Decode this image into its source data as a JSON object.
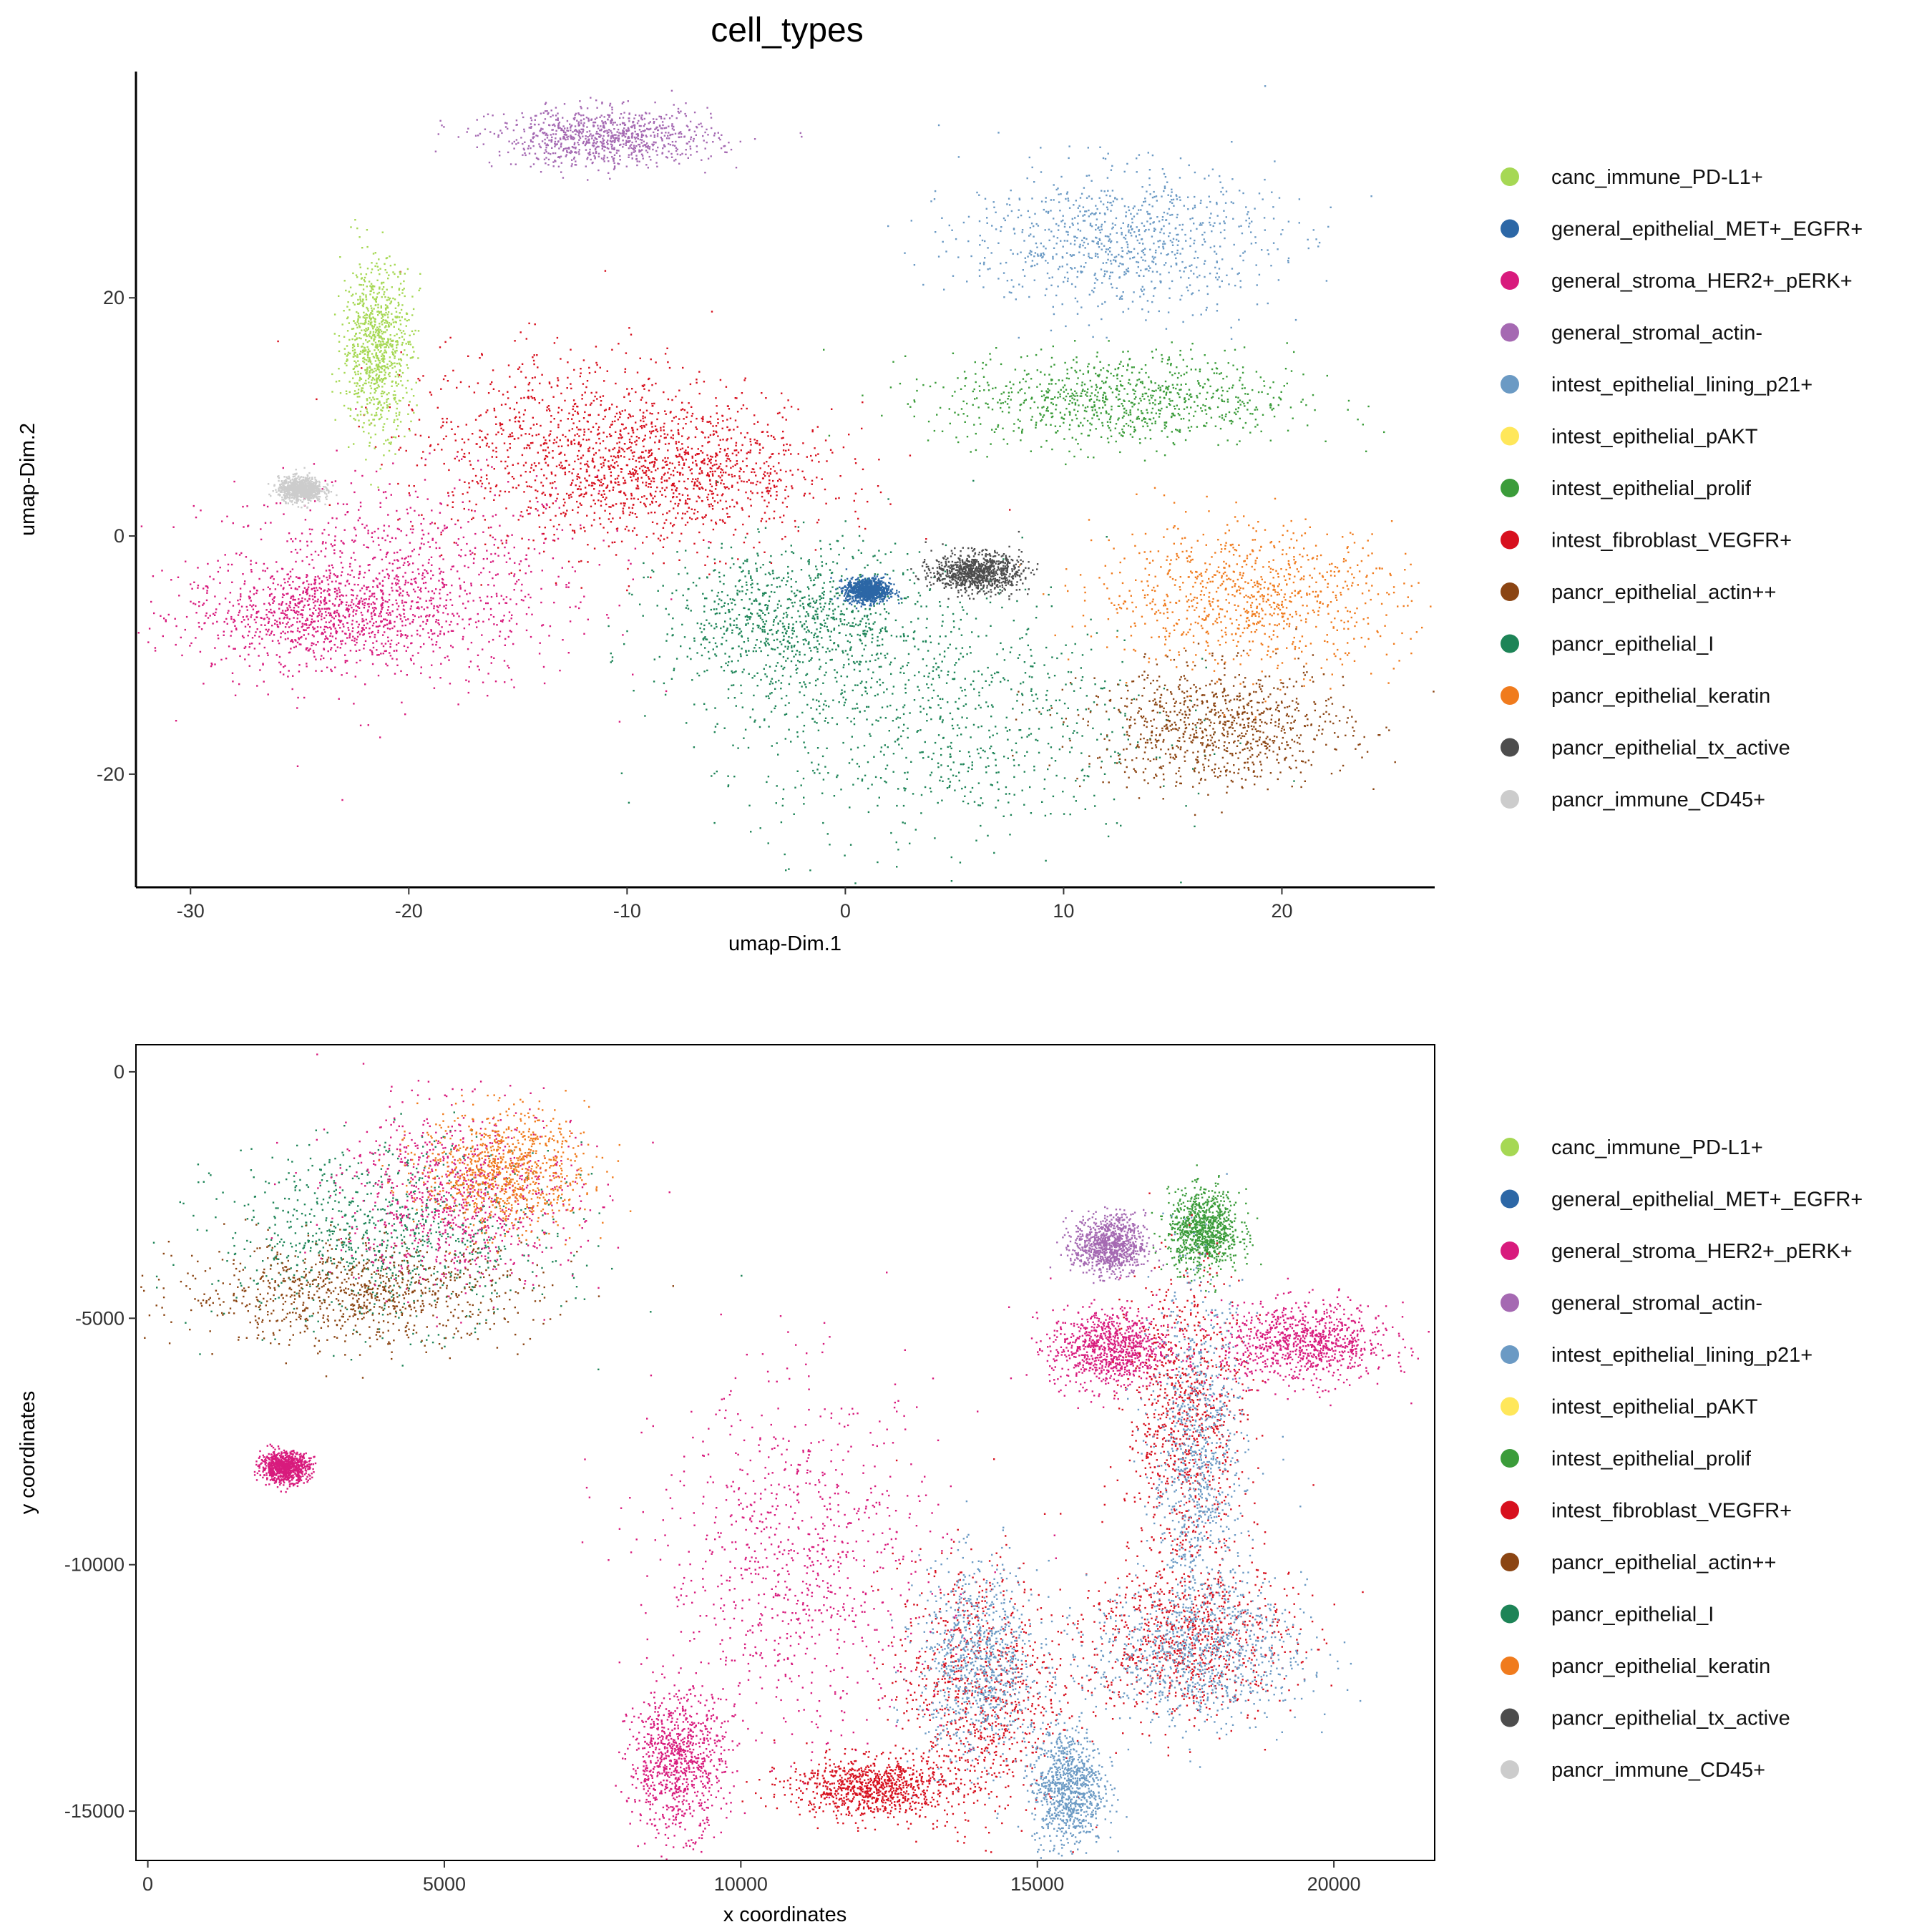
{
  "title": "cell_types",
  "legend_items": [
    {
      "label": "canc_immune_PD-L1+",
      "color": "#A6D854"
    },
    {
      "label": "general_epithelial_MET+_EGFR+",
      "color": "#2C67A6"
    },
    {
      "label": "general_stroma_HER2+_pERK+",
      "color": "#D81B7D"
    },
    {
      "label": "general_stromal_actin-",
      "color": "#A569B2"
    },
    {
      "label": "intest_epithelial_lining_p21+",
      "color": "#6B9AC4"
    },
    {
      "label": "intest_epithelial_pAKT",
      "color": "#FFE75A"
    },
    {
      "label": "intest_epithelial_prolif",
      "color": "#3B9C3A"
    },
    {
      "label": "intest_fibroblast_VEGFR+",
      "color": "#D7101E"
    },
    {
      "label": "pancr_epithelial_actin++",
      "color": "#8B4513"
    },
    {
      "label": "pancr_epithelial_I",
      "color": "#1D8457"
    },
    {
      "label": "pancr_epithelial_keratin",
      "color": "#F07B1D"
    },
    {
      "label": "pancr_epithelial_tx_active",
      "color": "#4D4D4D"
    },
    {
      "label": "pancr_immune_CD45+",
      "color": "#CCCCCC"
    }
  ],
  "chart_data": [
    {
      "type": "scatter",
      "title": "cell_types",
      "xlabel": "umap-Dim.1",
      "ylabel": "umap-Dim.2",
      "xlim": [
        -32.5,
        27
      ],
      "ylim": [
        -29.5,
        39
      ],
      "xticks": [
        -30,
        -20,
        -10,
        0,
        10,
        20
      ],
      "yticks": [
        -20,
        0,
        20
      ],
      "grid": false,
      "legend": "right",
      "clusters": [
        {
          "series": "general_stroma_HER2+_pERK+",
          "cx": -20.5,
          "cy": -4.0,
          "sx": 4.5,
          "sy": 4.5
        },
        {
          "series": "general_stroma_HER2+_pERK+",
          "cx": -24.0,
          "cy": -6.5,
          "sx": 3.0,
          "sy": 2.0
        },
        {
          "series": "intest_fibroblast_VEGFR+",
          "cx": -12.5,
          "cy": 8.0,
          "sx": 4.0,
          "sy": 4.0
        },
        {
          "series": "intest_fibroblast_VEGFR+",
          "cx": -7.5,
          "cy": 5.0,
          "sx": 3.5,
          "sy": 3.0
        },
        {
          "series": "canc_immune_PD-L1+",
          "cx": -21.5,
          "cy": 16.0,
          "sx": 0.8,
          "sy": 3.5
        },
        {
          "series": "general_stromal_actin-",
          "cx": -11.0,
          "cy": 33.5,
          "sx": 2.5,
          "sy": 1.2
        },
        {
          "series": "intest_epithelial_lining_p21+",
          "cx": 12.5,
          "cy": 25.0,
          "sx": 3.5,
          "sy": 3.0
        },
        {
          "series": "intest_epithelial_prolif",
          "cx": 12.5,
          "cy": 11.5,
          "sx": 4.0,
          "sy": 2.0
        },
        {
          "series": "pancr_epithelial_I",
          "cx": 4.0,
          "cy": -15.0,
          "sx": 5.0,
          "sy": 5.5
        },
        {
          "series": "pancr_epithelial_I",
          "cx": -2.5,
          "cy": -7.0,
          "sx": 3.0,
          "sy": 3.0
        },
        {
          "series": "pancr_epithelial_keratin",
          "cx": 18.5,
          "cy": -5.0,
          "sx": 3.5,
          "sy": 3.0
        },
        {
          "series": "pancr_epithelial_actin++",
          "cx": 17.0,
          "cy": -16.0,
          "sx": 3.0,
          "sy": 2.5
        },
        {
          "series": "pancr_epithelial_tx_active",
          "cx": 6.0,
          "cy": -3.0,
          "sx": 1.0,
          "sy": 0.8
        },
        {
          "series": "general_epithelial_MET+_EGFR+",
          "cx": 1.0,
          "cy": -4.5,
          "sx": 0.5,
          "sy": 0.5
        },
        {
          "series": "pancr_immune_CD45+",
          "cx": -25.0,
          "cy": 4.0,
          "sx": 0.5,
          "sy": 0.5
        }
      ]
    },
    {
      "type": "scatter",
      "xlabel": "x coordinates",
      "ylabel": "y coordinates",
      "xlim": [
        -200,
        21700
      ],
      "ylim": [
        -16000,
        550
      ],
      "xticks": [
        0,
        5000,
        10000,
        15000,
        20000
      ],
      "yticks": [
        0,
        -5000,
        -10000,
        -15000
      ],
      "grid": false,
      "legend": "right",
      "clusters": [
        {
          "series": "pancr_epithelial_I",
          "cx": 4000,
          "cy": -3300,
          "sx": 1400,
          "sy": 900
        },
        {
          "series": "pancr_epithelial_actin++",
          "cx": 3500,
          "cy": -4500,
          "sx": 1500,
          "sy": 500
        },
        {
          "series": "general_stroma_HER2+_pERK+",
          "cx": 5200,
          "cy": -2500,
          "sx": 1000,
          "sy": 900
        },
        {
          "series": "pancr_epithelial_keratin",
          "cx": 6000,
          "cy": -2000,
          "sx": 700,
          "sy": 600
        },
        {
          "series": "general_stroma_HER2+_pERK+",
          "cx": 16200,
          "cy": -5600,
          "sx": 500,
          "sy": 400
        },
        {
          "series": "intest_epithelial_prolif",
          "cx": 17800,
          "cy": -3200,
          "sx": 300,
          "sy": 400
        },
        {
          "series": "intest_fibroblast_VEGFR+",
          "cx": 17500,
          "cy": -7000,
          "sx": 500,
          "sy": 1500
        },
        {
          "series": "intest_epithelial_lining_p21+",
          "cx": 17700,
          "cy": -8000,
          "sx": 400,
          "sy": 1800
        },
        {
          "series": "intest_fibroblast_VEGFR+",
          "cx": 17500,
          "cy": -11500,
          "sx": 900,
          "sy": 800
        },
        {
          "series": "intest_epithelial_lining_p21+",
          "cx": 17700,
          "cy": -11800,
          "sx": 900,
          "sy": 700
        },
        {
          "series": "intest_fibroblast_VEGFR+",
          "cx": 14000,
          "cy": -12500,
          "sx": 700,
          "sy": 1300
        },
        {
          "series": "intest_epithelial_lining_p21+",
          "cx": 14000,
          "cy": -12000,
          "sx": 500,
          "sy": 1000
        },
        {
          "series": "general_stroma_HER2+_pERK+",
          "cx": 8900,
          "cy": -14000,
          "sx": 400,
          "sy": 700
        },
        {
          "series": "general_stroma_HER2+_pERK+",
          "cx": 11000,
          "cy": -10000,
          "sx": 1200,
          "sy": 1800
        },
        {
          "series": "intest_fibroblast_VEGFR+",
          "cx": 12200,
          "cy": -14500,
          "sx": 700,
          "sy": 300
        },
        {
          "series": "general_stromal_actin-",
          "cx": 16200,
          "cy": -3500,
          "sx": 300,
          "sy": 300
        },
        {
          "series": "intest_epithelial_lining_p21+",
          "cx": 15500,
          "cy": -14500,
          "sx": 300,
          "sy": 600
        },
        {
          "series": "general_stroma_HER2+_pERK+",
          "cx": 19500,
          "cy": -5500,
          "sx": 700,
          "sy": 400
        },
        {
          "series": "general_stroma_HER2+_pERK+",
          "cx": 2300,
          "cy": -8000,
          "sx": 200,
          "sy": 150
        }
      ]
    }
  ]
}
